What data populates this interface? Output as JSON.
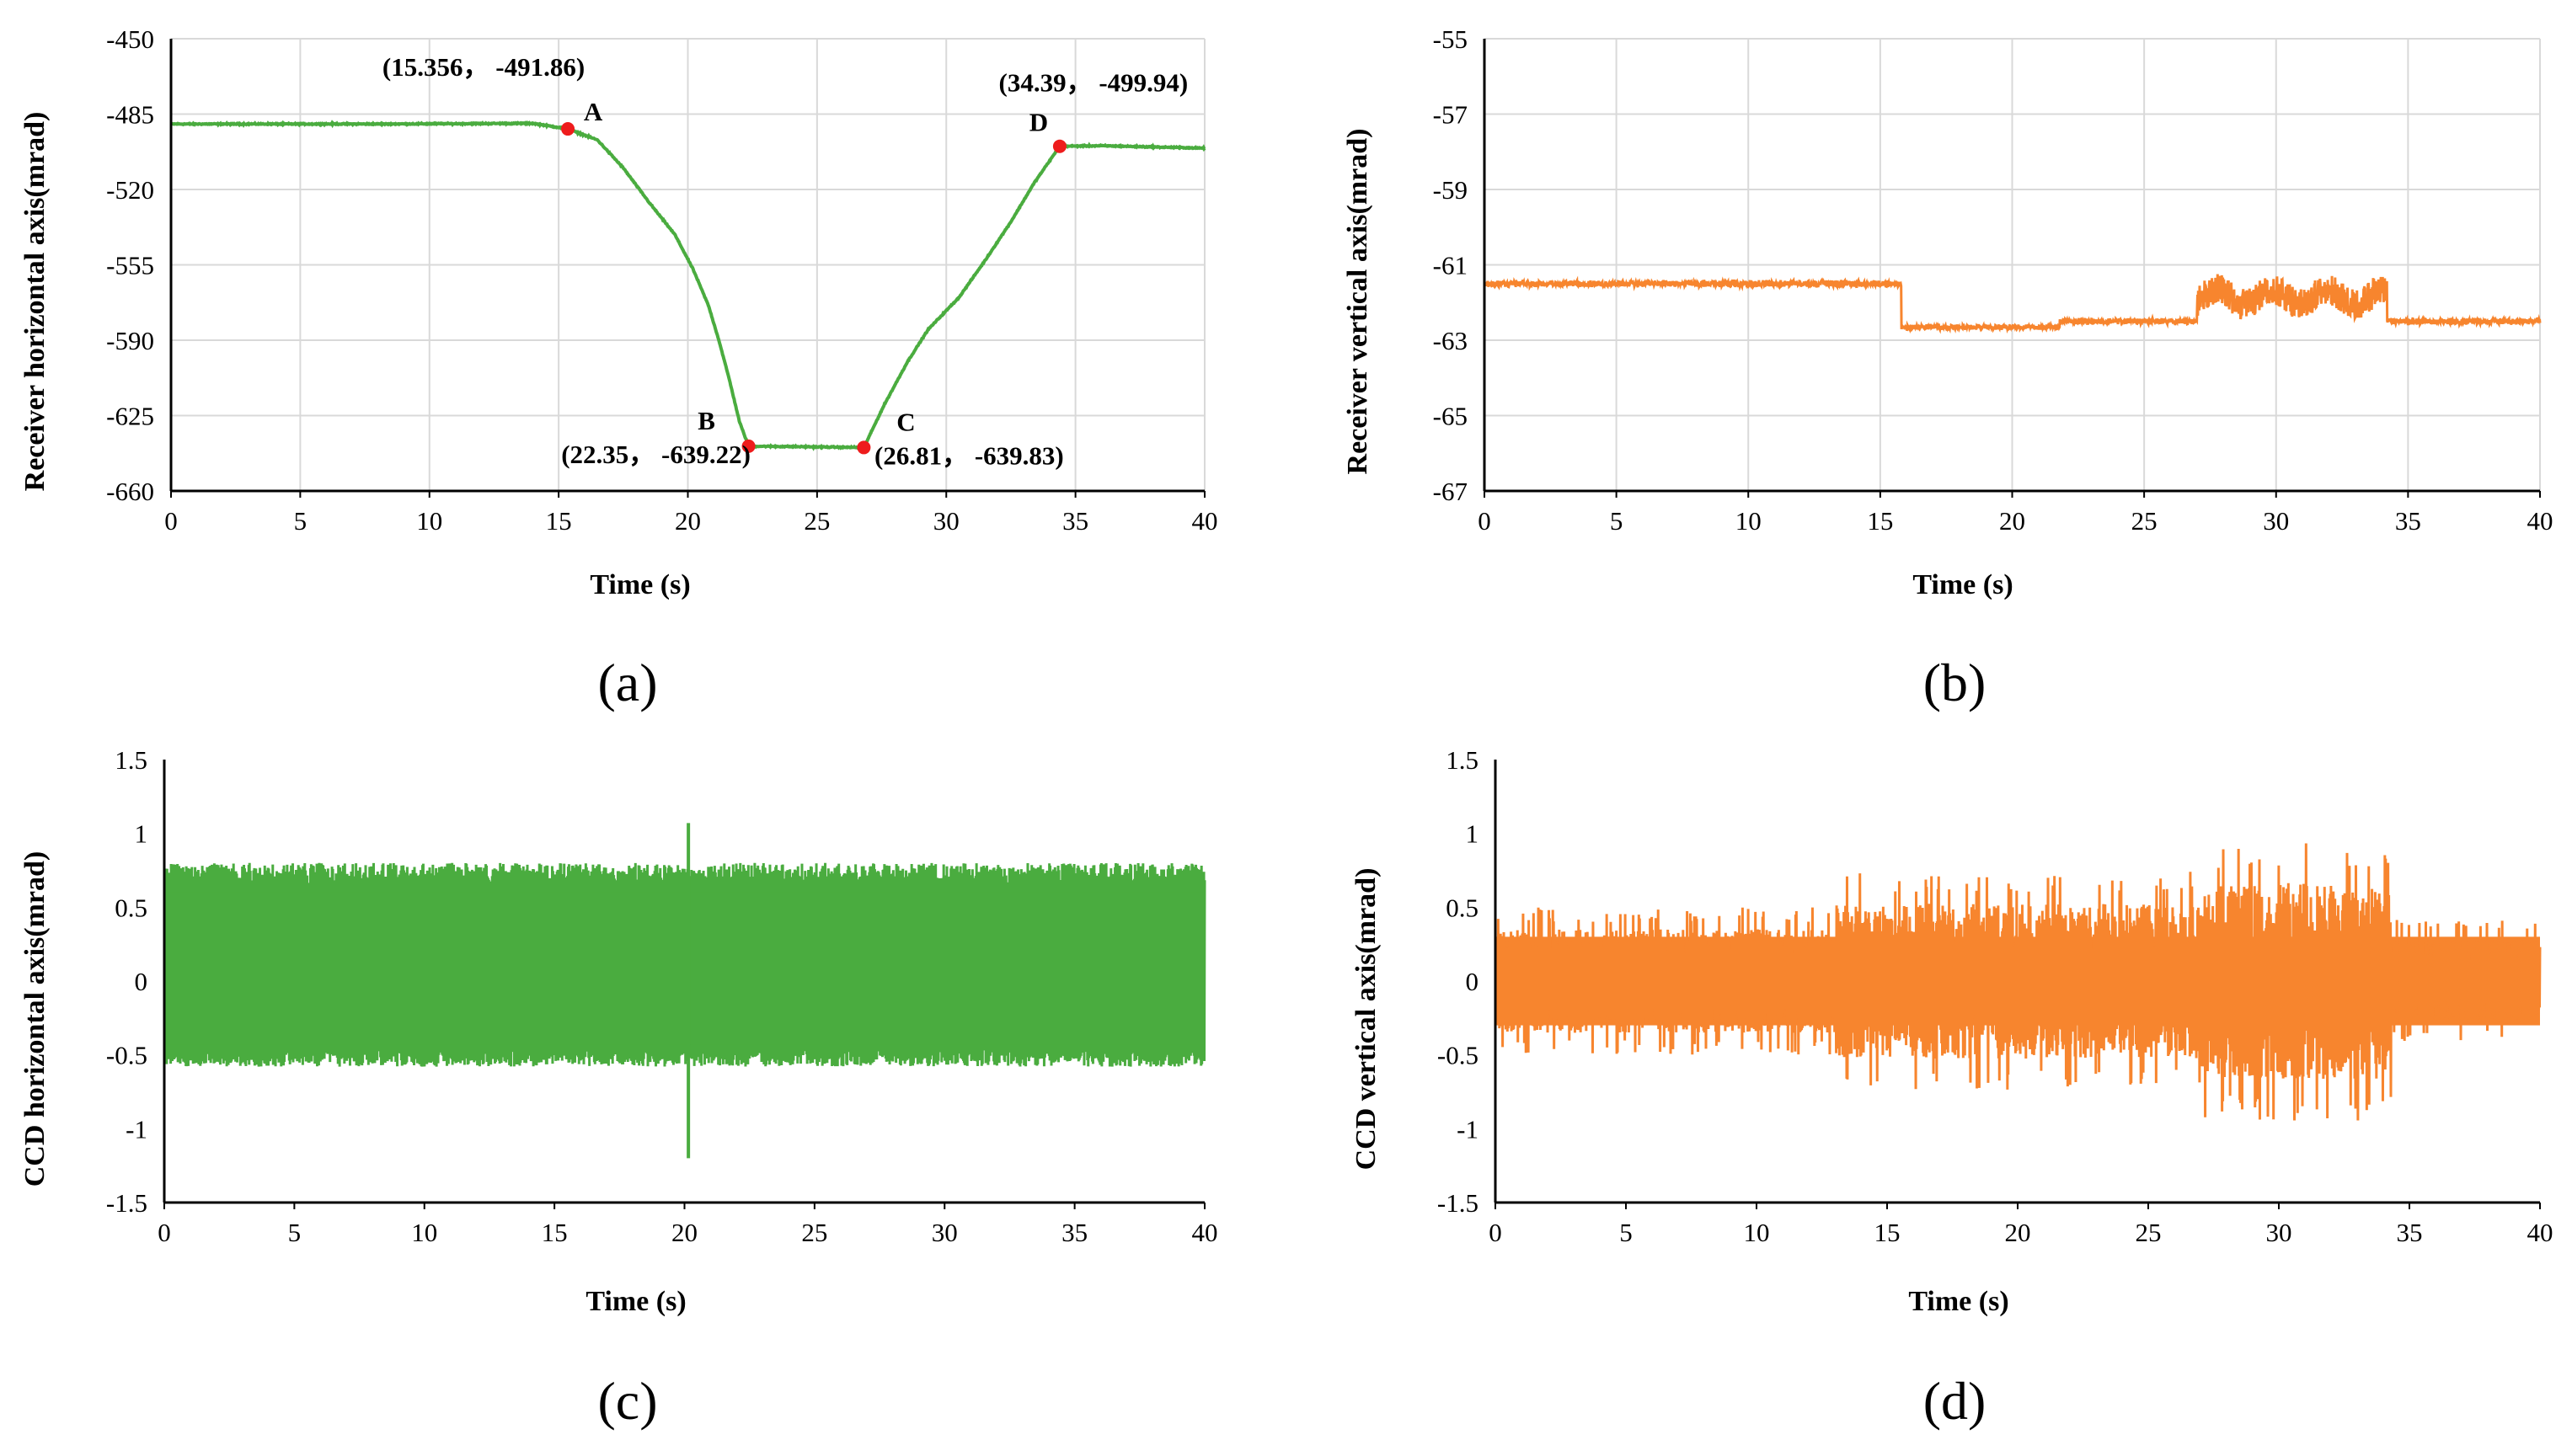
{
  "colors": {
    "green": "#4aac3f",
    "orange": "#f7852e",
    "marker": "#ee1c1c",
    "grid": "#d9d9d9",
    "axis": "#000000"
  },
  "chart_data": [
    {
      "id": "a",
      "type": "line",
      "caption": "(a)",
      "xlabel": "Time (s)",
      "ylabel": "Receiver horizontal axis(mrad)",
      "xlim": [
        0,
        40
      ],
      "ylim": [
        -660,
        -450
      ],
      "xticks": [
        "0",
        "5",
        "10",
        "15",
        "20",
        "25",
        "30",
        "35",
        "40"
      ],
      "yticks": [
        "-450",
        "-485",
        "-520",
        "-555",
        "-590",
        "-625",
        "-660"
      ],
      "grid": true,
      "color": "green",
      "noise": 0.4,
      "points": [
        [
          0,
          -489.6
        ],
        [
          8,
          -489.6
        ],
        [
          14,
          -489.3
        ],
        [
          15.356,
          -491.86
        ],
        [
          16.5,
          -497
        ],
        [
          17.5,
          -510
        ],
        [
          18.5,
          -526
        ],
        [
          19.5,
          -541
        ],
        [
          20.2,
          -557
        ],
        [
          20.8,
          -574
        ],
        [
          21.2,
          -590
        ],
        [
          21.6,
          -608
        ],
        [
          22.0,
          -628
        ],
        [
          22.35,
          -639.22
        ],
        [
          24,
          -639.4
        ],
        [
          26.81,
          -639.83
        ],
        [
          27.6,
          -620
        ],
        [
          28.5,
          -600
        ],
        [
          29.3,
          -585
        ],
        [
          30.5,
          -570
        ],
        [
          31.5,
          -553
        ],
        [
          32.5,
          -535
        ],
        [
          33.4,
          -517
        ],
        [
          34.39,
          -499.94
        ],
        [
          36,
          -499.7
        ],
        [
          40,
          -500.8
        ]
      ],
      "markers": [
        {
          "label": "A",
          "coord": "(15.356， -491.86)",
          "x": 15.356,
          "y": -491.86
        },
        {
          "label": "B",
          "coord": "(22.35， -639.22)",
          "x": 22.35,
          "y": -639.22
        },
        {
          "label": "C",
          "coord": "(26.81， -639.83)",
          "x": 26.81,
          "y": -639.83
        },
        {
          "label": "D",
          "coord": "(34.39， -499.94)",
          "x": 34.39,
          "y": -499.94
        }
      ]
    },
    {
      "id": "b",
      "type": "line",
      "caption": "(b)",
      "xlabel": "Time (s)",
      "ylabel": "Receiver vertical axis(mrad)",
      "xlim": [
        0,
        40
      ],
      "ylim": [
        -67,
        -55
      ],
      "xticks": [
        "0",
        "5",
        "10",
        "15",
        "20",
        "25",
        "30",
        "35",
        "40"
      ],
      "yticks": [
        "-55",
        "-57",
        "-59",
        "-61",
        "-63",
        "-65",
        "-67"
      ],
      "grid": true,
      "color": "orange",
      "noise": 0.08,
      "segments": [
        {
          "x0": 0,
          "x1": 8,
          "mean": -61.5,
          "amp": 0.12
        },
        {
          "x0": 8,
          "x1": 15.8,
          "mean": -61.5,
          "amp": 0.14
        },
        {
          "x0": 15.8,
          "x1": 21.8,
          "mean": -62.65,
          "amp": 0.1
        },
        {
          "x0": 21.8,
          "x1": 27,
          "mean": -62.5,
          "amp": 0.1
        },
        {
          "x0": 27,
          "x1": 34.2,
          "mean": -61.85,
          "amp": 0.45
        },
        {
          "x0": 34.2,
          "x1": 40,
          "mean": -62.5,
          "amp": 0.12
        }
      ]
    },
    {
      "id": "c",
      "type": "line",
      "caption": "(c)",
      "xlabel": "Time (s)",
      "ylabel": "CCD horizontal axis(mrad)",
      "xlim": [
        0,
        40
      ],
      "ylim": [
        -1.5,
        1.5
      ],
      "xticks": [
        "0",
        "5",
        "10",
        "15",
        "20",
        "25",
        "30",
        "35",
        "40"
      ],
      "yticks": [
        "1.5",
        "1",
        "0.5",
        "0",
        "-0.5",
        "-1",
        "-1.5"
      ],
      "grid": false,
      "color": "green",
      "band_upper": 0.78,
      "band_lower": -0.58,
      "spikes": [
        {
          "x": 20.15,
          "max": 1.07,
          "min": -1.2
        }
      ]
    },
    {
      "id": "d",
      "type": "line",
      "caption": "(d)",
      "xlabel": "Time (s)",
      "ylabel": "CCD vertical axis(mrad)",
      "xlim": [
        0,
        40
      ],
      "ylim": [
        -1.5,
        1.5
      ],
      "xticks": [
        "0",
        "5",
        "10",
        "15",
        "20",
        "25",
        "30",
        "35",
        "40"
      ],
      "yticks": [
        "1.5",
        "1",
        "0.5",
        "0",
        "-0.5",
        "-1",
        "-1.5"
      ],
      "grid": false,
      "color": "orange",
      "segments": [
        {
          "x0": 0,
          "x1": 13,
          "amp": 0.5
        },
        {
          "x0": 13,
          "x1": 27,
          "amp": 0.75
        },
        {
          "x0": 27,
          "x1": 34.3,
          "amp": 0.95
        },
        {
          "x0": 34.3,
          "x1": 40,
          "amp": 0.42
        }
      ]
    }
  ]
}
